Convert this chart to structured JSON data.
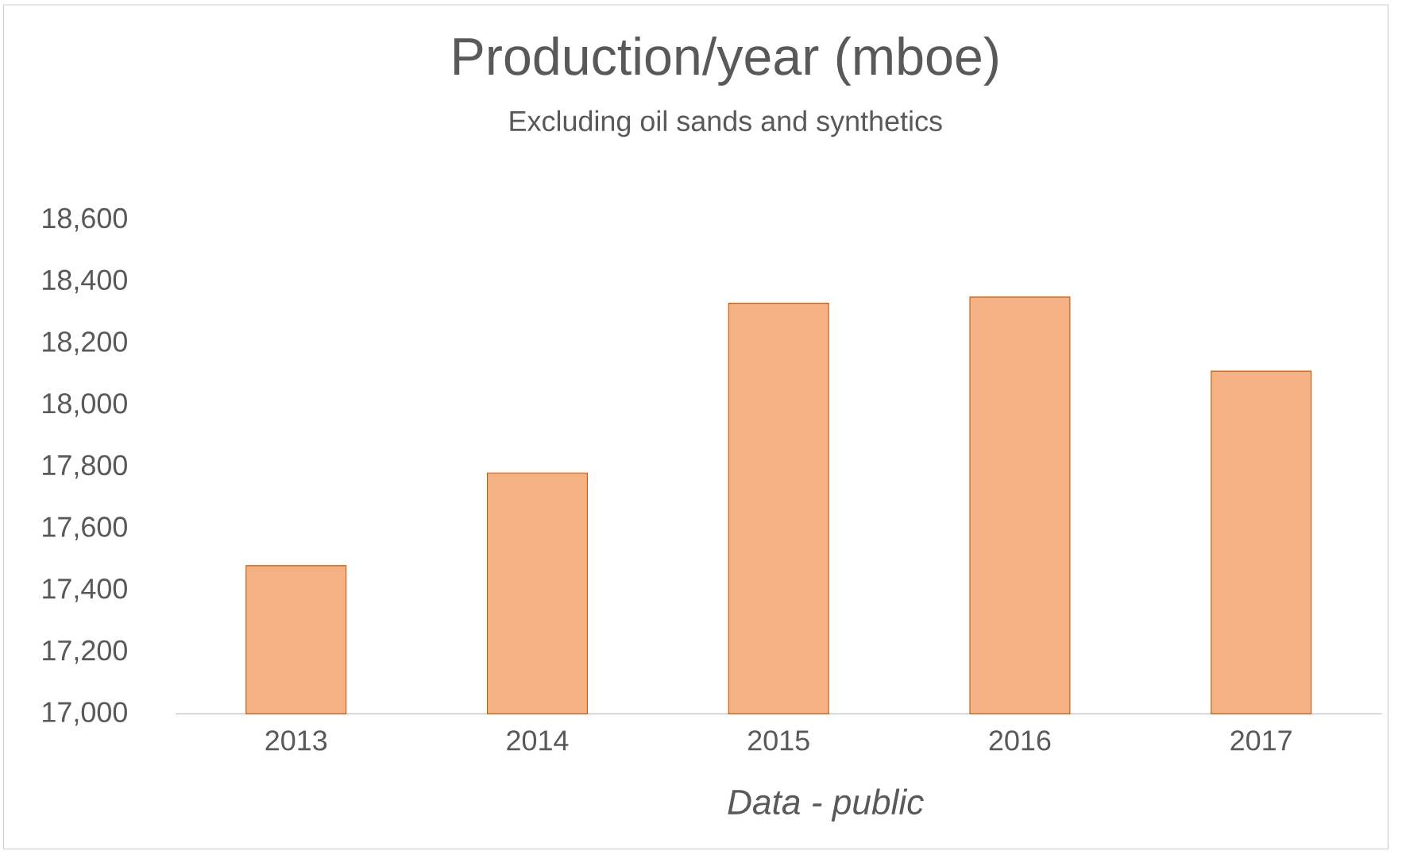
{
  "chart_data": {
    "type": "bar",
    "title": "Production/year (mboe)",
    "subtitle": "Excluding oil sands and synthetics",
    "categories": [
      "2013",
      "2014",
      "2015",
      "2016",
      "2017"
    ],
    "values": [
      17480,
      17780,
      18330,
      18350,
      18110
    ],
    "color": "#f4b183",
    "ylim": [
      17000,
      18600
    ],
    "yticks": [
      {
        "value": 17000,
        "label": "17,000"
      },
      {
        "value": 17200,
        "label": "17,200"
      },
      {
        "value": 17400,
        "label": "17,400"
      },
      {
        "value": 17600,
        "label": "17,600"
      },
      {
        "value": 17800,
        "label": "17,800"
      },
      {
        "value": 18000,
        "label": "18,000"
      },
      {
        "value": 18200,
        "label": "18,200"
      },
      {
        "value": 18400,
        "label": "18,400"
      },
      {
        "value": 18600,
        "label": "18,600"
      }
    ],
    "annotations": [
      "Data - public"
    ]
  }
}
